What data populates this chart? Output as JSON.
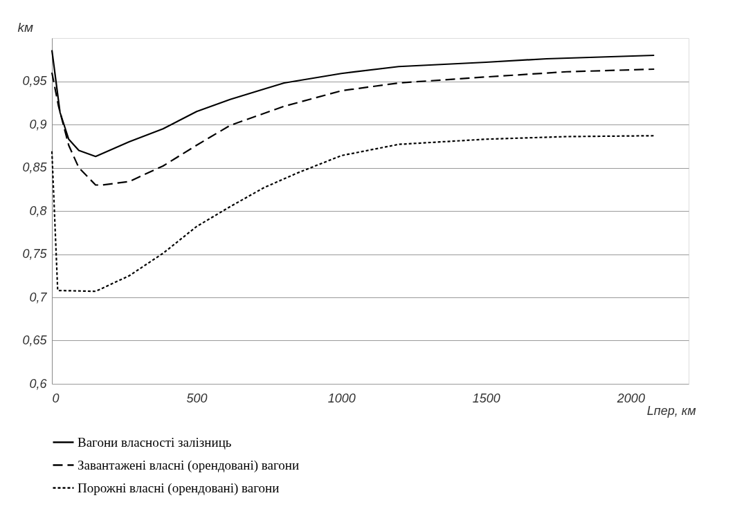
{
  "chart_data": {
    "type": "line",
    "xlabel": "Lпер, км",
    "ylabel": "kм",
    "xlim": [
      0,
      2200
    ],
    "xticks": [
      0,
      500,
      1000,
      1500,
      2000
    ],
    "ylim": [
      0.6,
      1.0
    ],
    "yticks": [
      {
        "value": 0.6,
        "label": "0,6"
      },
      {
        "value": 0.65,
        "label": "0,65"
      },
      {
        "value": 0.7,
        "label": "0,7"
      },
      {
        "value": 0.75,
        "label": "0,75"
      },
      {
        "value": 0.8,
        "label": "0,8"
      },
      {
        "value": 0.85,
        "label": "0,85"
      },
      {
        "value": 0.9,
        "label": "0,9"
      },
      {
        "value": 0.95,
        "label": "0,95"
      }
    ],
    "grid": "y",
    "legend": "bottom",
    "marker": "none",
    "series": [
      {
        "name": "Вагони власності залізниць",
        "color": "#000000",
        "line_style": "solid",
        "x": [
          0,
          28,
          58,
          93,
          151,
          267,
          384,
          500,
          616,
          733,
          802,
          1000,
          1198,
          1500,
          1709,
          1895,
          2081
        ],
        "values": [
          0.986,
          0.914,
          0.883,
          0.87,
          0.863,
          0.88,
          0.895,
          0.915,
          0.929,
          0.941,
          0.948,
          0.959,
          0.967,
          0.972,
          0.976,
          0.978,
          0.98
        ]
      },
      {
        "name": "Завантажені власні (орендовані) вагони",
        "color": "#000000",
        "line_style": "dashed",
        "x": [
          0,
          23,
          58,
          93,
          151,
          174,
          267,
          384,
          500,
          616,
          802,
          1000,
          1198,
          1500,
          1779,
          2081
        ],
        "values": [
          0.96,
          0.921,
          0.876,
          0.85,
          0.83,
          0.83,
          0.834,
          0.852,
          0.876,
          0.899,
          0.921,
          0.939,
          0.948,
          0.955,
          0.961,
          0.964
        ]
      },
      {
        "name": "Порожні власні (орендовані) вагони",
        "color": "#000000",
        "line_style": "dotted",
        "x": [
          0,
          20,
          151,
          267,
          384,
          500,
          616,
          733,
          849,
          1000,
          1198,
          1500,
          1779,
          2081
        ],
        "values": [
          0.869,
          0.708,
          0.707,
          0.725,
          0.751,
          0.782,
          0.805,
          0.827,
          0.844,
          0.864,
          0.877,
          0.883,
          0.886,
          0.887
        ]
      }
    ]
  }
}
